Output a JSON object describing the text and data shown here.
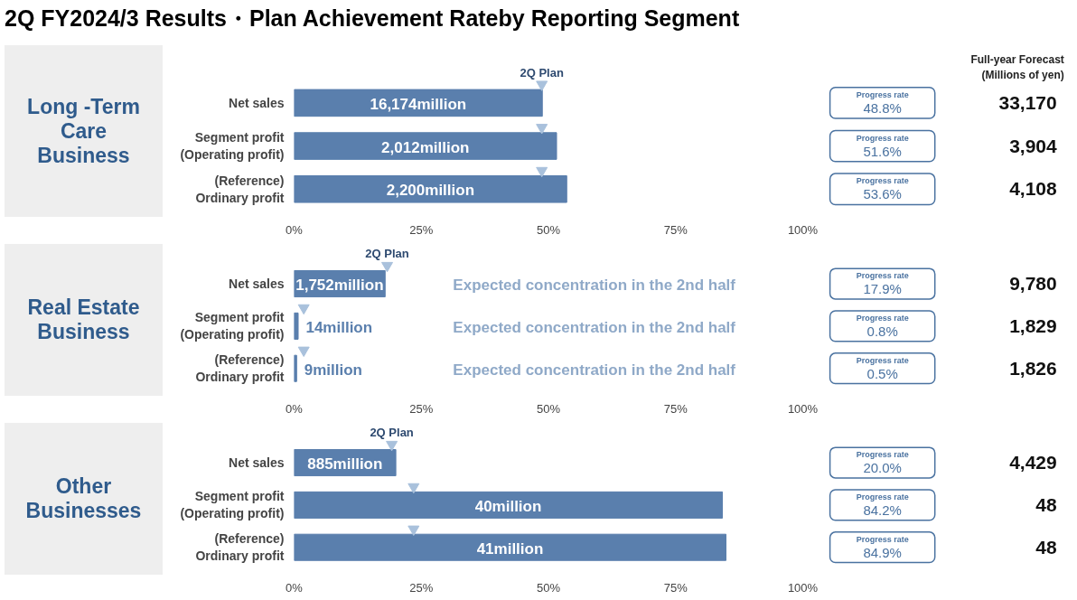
{
  "chart_data": [
    {
      "type": "bar",
      "orientation": "horizontal",
      "title": "2Q FY2024/3 Results・Plan Achievement Rateby Reporting Segment",
      "ylabel": "Long -Term\nCare\nBusiness",
      "categories": [
        "Net sales",
        "Segment profit\n(Operating profit)",
        "(Reference)\nOrdinary profit"
      ],
      "series": [
        {
          "color": "#5a7fad",
          "values": [
            48.8,
            51.6,
            53.6
          ],
          "value_labels": [
            "Progress rate\n48.8%",
            "Progress rate\n51.6%",
            "Progress rate\n53.6%"
          ]
        },
        {
          "type": "scatter",
          "name": "2Q Plan",
          "color": "#a9c1dc",
          "values": [
            48.7,
            48.7,
            48.7
          ]
        }
      ],
      "marker": "triangle",
      "xlim": [
        0,
        100
      ],
      "xticks": [
        {
          "value": 0,
          "label": "0%"
        },
        {
          "value": 25,
          "label": "25%"
        },
        {
          "value": 50,
          "label": "50%"
        },
        {
          "value": 75,
          "label": "75%"
        },
        {
          "value": 100,
          "label": "100%"
        }
      ],
      "annotations": [
        "16,174million",
        "2,012million",
        "2,200million",
        "33,170",
        "3,904",
        "4,108",
        "Full-year Forecast\n(Millions of yen)"
      ]
    },
    {
      "type": "bar",
      "orientation": "horizontal",
      "ylabel": "Real Estate\nBusiness",
      "categories": [
        "Net sales",
        "Segment profit\n(Operating profit)",
        "(Reference)\nOrdinary profit"
      ],
      "series": [
        {
          "color": "#5a7fad",
          "values": [
            17.9,
            0.8,
            0.5
          ],
          "value_labels": [
            "Progress rate\n17.9%",
            "Progress rate\n0.8%",
            "Progress rate\n0.5%"
          ]
        },
        {
          "type": "scatter",
          "name": "2Q Plan",
          "color": "#a9c1dc",
          "values": [
            18.3,
            1.9,
            1.9
          ]
        }
      ],
      "marker": "triangle",
      "xlim": [
        0,
        100
      ],
      "xticks": [
        {
          "value": 0,
          "label": "0%"
        },
        {
          "value": 25,
          "label": "25%"
        },
        {
          "value": 50,
          "label": "50%"
        },
        {
          "value": 75,
          "label": "75%"
        },
        {
          "value": 100,
          "label": "100%"
        }
      ],
      "annotations": [
        "1,752million",
        "14million",
        "9million",
        "9,780",
        "1,829",
        "1,826",
        "Expected concentration in the 2nd half",
        "Expected concentration in the 2nd half",
        "Expected concentration in the 2nd half"
      ]
    },
    {
      "type": "bar",
      "orientation": "horizontal",
      "ylabel": "Other\nBusinesses",
      "categories": [
        "Net sales",
        "Segment profit\n(Operating profit)",
        "(Reference)\nOrdinary profit"
      ],
      "series": [
        {
          "color": "#5a7fad",
          "values": [
            20.0,
            84.2,
            84.9
          ],
          "value_labels": [
            "Progress rate\n20.0%",
            "Progress rate\n84.2%",
            "Progress rate\n84.9%"
          ]
        },
        {
          "type": "scatter",
          "name": "2Q Plan",
          "color": "#a9c1dc",
          "values": [
            19.2,
            23.5,
            23.5
          ]
        }
      ],
      "marker": "triangle",
      "xlim": [
        0,
        100
      ],
      "xticks": [
        {
          "value": 0,
          "label": "0%"
        },
        {
          "value": 25,
          "label": "25%"
        },
        {
          "value": 50,
          "label": "50%"
        },
        {
          "value": 75,
          "label": "75%"
        },
        {
          "value": 100,
          "label": "100%"
        }
      ],
      "annotations": [
        "885million",
        "40million",
        "41million",
        "4,429",
        "48",
        "48"
      ]
    }
  ]
}
